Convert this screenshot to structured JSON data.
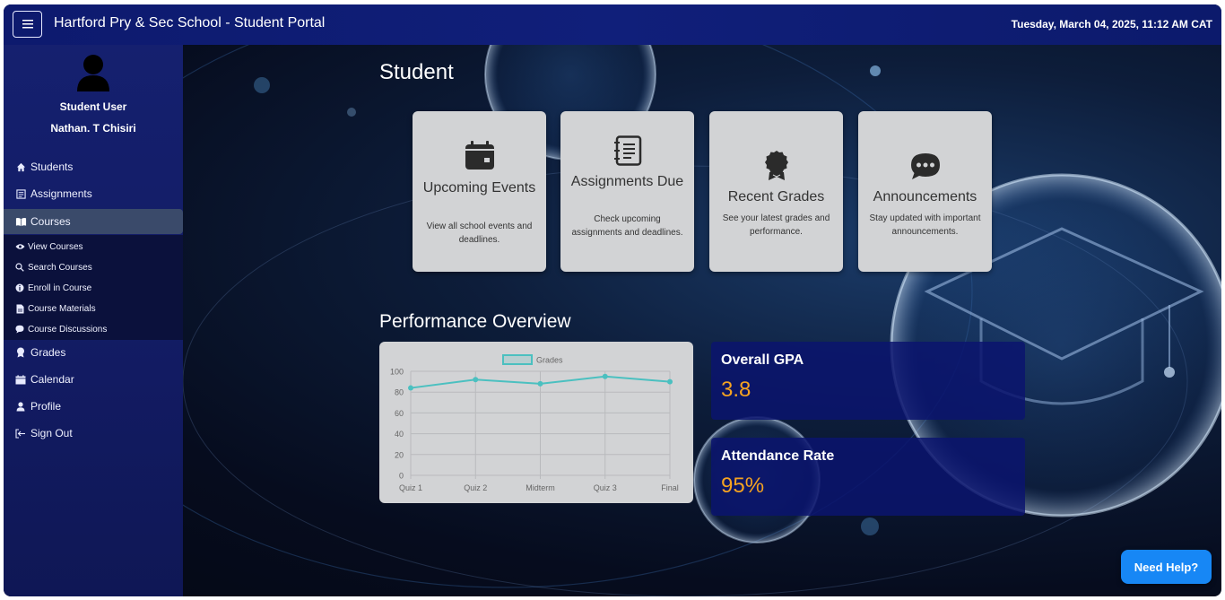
{
  "header": {
    "menu_icon": "hamburger-icon",
    "title": "Hartford Pry & Sec School - Student Portal",
    "datetime": "Tuesday, March 04, 2025, 11:12 AM CAT"
  },
  "sidebar": {
    "user_role": "Student User",
    "user_name": "Nathan. T Chisiri",
    "items": [
      {
        "label": "Students",
        "icon": "home-icon"
      },
      {
        "label": "Assignments",
        "icon": "assignment-icon"
      },
      {
        "label": "Courses",
        "icon": "book-icon"
      },
      {
        "label": "Grades",
        "icon": "award-icon"
      },
      {
        "label": "Calendar",
        "icon": "calendar-icon"
      },
      {
        "label": "Profile",
        "icon": "person-icon"
      },
      {
        "label": "Sign Out",
        "icon": "sign-out-icon"
      }
    ],
    "submenu": [
      {
        "label": "View Courses",
        "icon": "eye-icon"
      },
      {
        "label": "Search Courses",
        "icon": "search-icon"
      },
      {
        "label": "Enroll in Course",
        "icon": "info-icon"
      },
      {
        "label": "Course Materials",
        "icon": "file-icon"
      },
      {
        "label": "Course Discussions",
        "icon": "chat-icon"
      }
    ]
  },
  "main": {
    "title": "Student",
    "cards": [
      {
        "title": "Upcoming Events",
        "desc": "View all school events and deadlines.",
        "icon": "calendar-icon"
      },
      {
        "title": "Assignments Due",
        "desc": "Check upcoming assignments and deadlines.",
        "icon": "notebook-icon"
      },
      {
        "title": "Recent Grades",
        "desc": "See your latest grades and performance.",
        "icon": "award-icon"
      },
      {
        "title": "Announcements",
        "desc": "Stay updated with important announcements.",
        "icon": "chat-dots-icon"
      }
    ],
    "performance_title": "Performance Overview",
    "gpa_label": "Overall GPA",
    "gpa_value": "3.8",
    "attendance_label": "Attendance Rate",
    "attendance_value": "95%",
    "help_label": "Need Help?"
  },
  "chart_data": {
    "type": "line",
    "categories": [
      "Quiz 1",
      "Quiz 2",
      "Midterm",
      "Quiz 3",
      "Final"
    ],
    "series": [
      {
        "name": "Grades",
        "values": [
          84,
          92,
          88,
          95,
          90
        ]
      }
    ],
    "y_ticks": [
      "0",
      "20",
      "40",
      "60",
      "80",
      "100"
    ],
    "ylim": [
      0,
      100
    ],
    "grid": true,
    "legend": "top",
    "color": "#4bc0c0"
  }
}
